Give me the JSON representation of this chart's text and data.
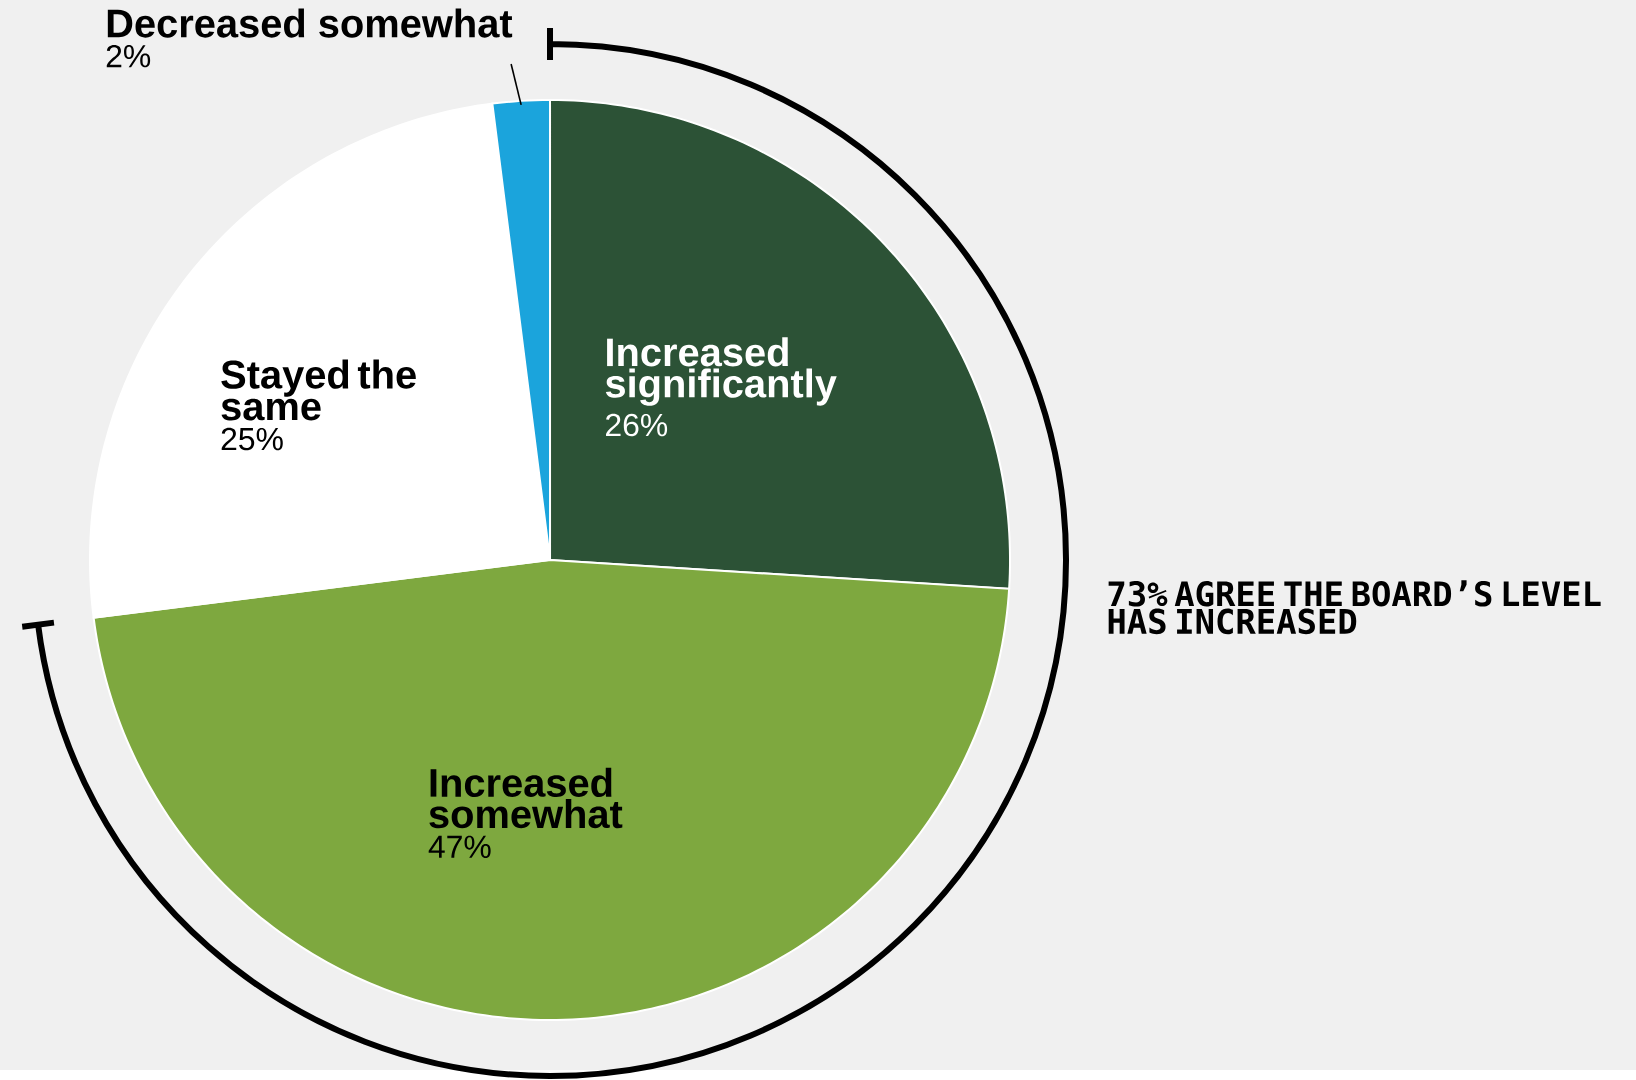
{
  "chart_data": {
    "type": "pie",
    "categories": [
      "Increased significantly",
      "Increased somewhat",
      "Stayed the same",
      "Decreased somewhat"
    ],
    "values": [
      26,
      47,
      25,
      2
    ],
    "colors": [
      "#2c5236",
      "#7ea83f",
      "#ffffff",
      "#1ba4dc"
    ],
    "value_labels": [
      "26%",
      "47%",
      "25%",
      "2%"
    ],
    "annotations": [
      "73% AGREE THE BOARD’S LEVEL HAS INCREASED"
    ]
  }
}
